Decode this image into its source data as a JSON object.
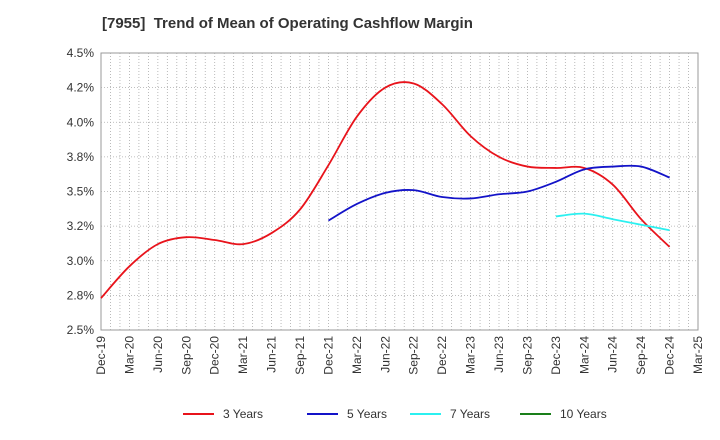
{
  "chart_data": {
    "type": "line",
    "title": "[7955]  Trend of Mean of Operating Cashflow Margin",
    "xlabel": "",
    "ylabel": "",
    "x_ticks": [
      "Dec-19",
      "Mar-20",
      "Jun-20",
      "Sep-20",
      "Dec-20",
      "Mar-21",
      "Jun-21",
      "Sep-21",
      "Dec-21",
      "Mar-22",
      "Jun-22",
      "Sep-22",
      "Dec-22",
      "Mar-23",
      "Jun-23",
      "Sep-23",
      "Dec-23",
      "Mar-24",
      "Jun-24",
      "Sep-24",
      "Dec-24",
      "Mar-25"
    ],
    "y_ticks": [
      "2.5%",
      "2.8%",
      "3.0%",
      "3.2%",
      "3.5%",
      "3.8%",
      "4.0%",
      "4.2%",
      "4.5%"
    ],
    "ylim": [
      2.5,
      4.5
    ],
    "grid": true,
    "legend_position": "bottom",
    "series": [
      {
        "name": "3 Years",
        "color": "#e8131b",
        "points": [
          [
            "Dec-19",
            2.73
          ],
          [
            "Mar-20",
            2.96
          ],
          [
            "Jun-20",
            3.12
          ],
          [
            "Sep-20",
            3.17
          ],
          [
            "Dec-20",
            3.15
          ],
          [
            "Mar-21",
            3.12
          ],
          [
            "Jun-21",
            3.2
          ],
          [
            "Sep-21",
            3.37
          ],
          [
            "Dec-21",
            3.69
          ],
          [
            "Mar-22",
            4.04
          ],
          [
            "Jun-22",
            4.25
          ],
          [
            "Sep-22",
            4.28
          ],
          [
            "Dec-22",
            4.13
          ],
          [
            "Mar-23",
            3.9
          ],
          [
            "Jun-23",
            3.75
          ],
          [
            "Sep-23",
            3.68
          ],
          [
            "Dec-23",
            3.67
          ],
          [
            "Mar-24",
            3.67
          ],
          [
            "Jun-24",
            3.55
          ],
          [
            "Sep-24",
            3.3
          ],
          [
            "Dec-24",
            3.1
          ]
        ]
      },
      {
        "name": "5 Years",
        "color": "#1313c8",
        "points": [
          [
            "Dec-21",
            3.29
          ],
          [
            "Mar-22",
            3.41
          ],
          [
            "Jun-22",
            3.49
          ],
          [
            "Sep-22",
            3.51
          ],
          [
            "Dec-22",
            3.46
          ],
          [
            "Mar-23",
            3.45
          ],
          [
            "Jun-23",
            3.48
          ],
          [
            "Sep-23",
            3.5
          ],
          [
            "Dec-23",
            3.57
          ],
          [
            "Mar-24",
            3.66
          ],
          [
            "Jun-24",
            3.68
          ],
          [
            "Sep-24",
            3.68
          ],
          [
            "Dec-24",
            3.6
          ]
        ]
      },
      {
        "name": "7 Years",
        "color": "#2bf0f0",
        "points": [
          [
            "Dec-23",
            3.32
          ],
          [
            "Mar-24",
            3.34
          ],
          [
            "Jun-24",
            3.3
          ],
          [
            "Sep-24",
            3.26
          ],
          [
            "Dec-24",
            3.22
          ]
        ]
      },
      {
        "name": "10 Years",
        "color": "#1a7f1a",
        "points": []
      }
    ]
  }
}
